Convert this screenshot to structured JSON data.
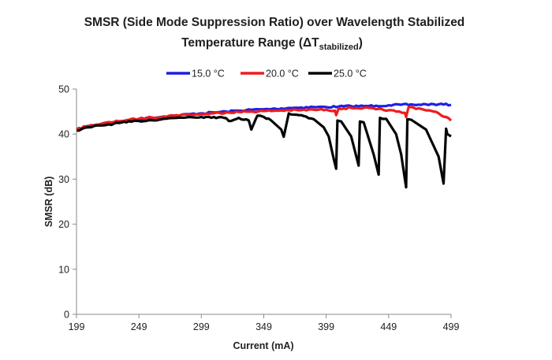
{
  "chart_data": {
    "type": "line",
    "title": {
      "line1": "SMSR (Side Mode Suppression Ratio) over Wavelength Stabilized",
      "line2_prefix": "Temperature Range (ΔT",
      "line2_subscript": "stabilized",
      "line2_suffix": ")"
    },
    "xlabel": "Current (mA)",
    "ylabel": "SMSR (dB)",
    "xlim": [
      199,
      499
    ],
    "ylim": [
      0,
      50
    ],
    "xticks": [
      199,
      249,
      299,
      349,
      399,
      449,
      499
    ],
    "yticks": [
      0,
      10,
      20,
      30,
      40,
      50
    ],
    "grid": false,
    "legend_position": "top-center",
    "series": [
      {
        "name": "15.0 °C",
        "color": "#1f1fe6",
        "x": [
          199,
          209,
          219,
          229,
          239,
          249,
          259,
          269,
          279,
          289,
          299,
          309,
          319,
          329,
          339,
          349,
          359,
          369,
          379,
          389,
          399,
          409,
          419,
          429,
          439,
          449,
          459,
          469,
          479,
          489,
          499
        ],
        "y": [
          41.0,
          41.8,
          42.2,
          42.6,
          43.0,
          43.3,
          43.6,
          43.9,
          44.1,
          44.4,
          44.6,
          44.8,
          45.0,
          45.2,
          45.4,
          45.5,
          45.6,
          45.8,
          45.9,
          46.0,
          46.0,
          46.1,
          46.2,
          46.2,
          46.3,
          46.4,
          46.5,
          46.5,
          46.6,
          46.6,
          46.5
        ]
      },
      {
        "name": "20.0 °C",
        "color": "#ee1c1c",
        "x": [
          199,
          209,
          219,
          229,
          239,
          249,
          259,
          269,
          279,
          289,
          299,
          309,
          319,
          329,
          339,
          349,
          359,
          369,
          379,
          389,
          399,
          406,
          407,
          409,
          419,
          429,
          439,
          449,
          455,
          462,
          463,
          465,
          475,
          485,
          495,
          499
        ],
        "y": [
          41.2,
          41.8,
          42.3,
          42.7,
          43.1,
          43.4,
          43.7,
          43.9,
          44.2,
          44.3,
          44.4,
          44.6,
          44.8,
          44.9,
          45.0,
          45.1,
          45.2,
          45.3,
          45.3,
          45.4,
          45.4,
          45.2,
          44.2,
          45.7,
          45.8,
          45.8,
          45.5,
          45.3,
          45.0,
          44.7,
          43.8,
          46.0,
          45.6,
          45.0,
          43.8,
          43.0
        ]
      },
      {
        "name": "25.0 °C",
        "color": "#050505",
        "x": [
          199,
          209,
          219,
          229,
          239,
          249,
          259,
          269,
          279,
          289,
          299,
          309,
          319,
          321,
          329,
          337,
          339,
          343,
          344,
          349,
          355,
          363,
          365,
          369,
          379,
          389,
          397,
          401,
          405,
          407,
          408,
          411,
          419,
          425,
          426,
          429,
          437,
          441,
          442,
          447,
          455,
          459,
          463,
          464,
          467,
          479,
          489,
          493,
          495,
          496,
          499
        ],
        "y": [
          40.8,
          41.5,
          41.9,
          42.3,
          42.6,
          42.9,
          43.1,
          43.4,
          43.6,
          43.8,
          43.8,
          43.8,
          43.5,
          42.9,
          43.6,
          43.0,
          41.0,
          43.6,
          44.1,
          43.8,
          43.0,
          41.0,
          39.4,
          44.6,
          44.2,
          43.3,
          41.5,
          39.5,
          34.5,
          32.3,
          43.0,
          42.8,
          39.5,
          33.0,
          42.8,
          42.6,
          35.5,
          31.0,
          43.6,
          43.4,
          40.0,
          35.5,
          28.2,
          43.3,
          43.2,
          41.0,
          35.0,
          29.0,
          41.2,
          40.0,
          39.5
        ]
      }
    ]
  }
}
